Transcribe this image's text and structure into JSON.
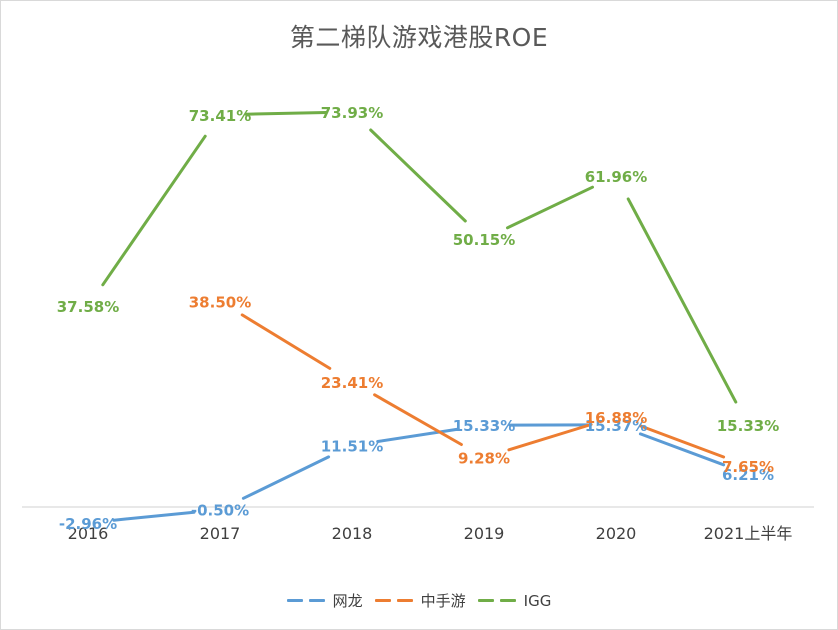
{
  "chart_data": {
    "type": "line",
    "title": "第二梯队游戏港股ROE",
    "categories": [
      "2016",
      "2017",
      "2018",
      "2019",
      "2020",
      "2021上半年"
    ],
    "ylim": [
      -5,
      80
    ],
    "series": [
      {
        "name": "网龙",
        "color": "#5b9bd5",
        "dashed": true,
        "values": [
          -2.96,
          -0.5,
          11.51,
          15.33,
          15.37,
          6.21
        ],
        "labels": [
          "-2.96%",
          "-0.50%",
          "11.51%",
          "15.33%",
          "15.37%",
          "6.21%"
        ]
      },
      {
        "name": "中手游",
        "color": "#ed7d31",
        "dashed": true,
        "values": [
          null,
          38.5,
          23.41,
          9.28,
          16.88,
          7.65
        ],
        "labels": [
          null,
          "38.50%",
          "23.41%",
          "9.28%",
          "16.88%",
          "7.65%"
        ]
      },
      {
        "name": "IGG",
        "color": "#70ad47",
        "dashed": true,
        "values": [
          37.58,
          73.41,
          73.93,
          50.15,
          61.96,
          15.33
        ],
        "labels": [
          "37.58%",
          "73.41%",
          "73.93%",
          "50.15%",
          "61.96%",
          "15.33%"
        ]
      }
    ],
    "legend_position": "bottom"
  }
}
